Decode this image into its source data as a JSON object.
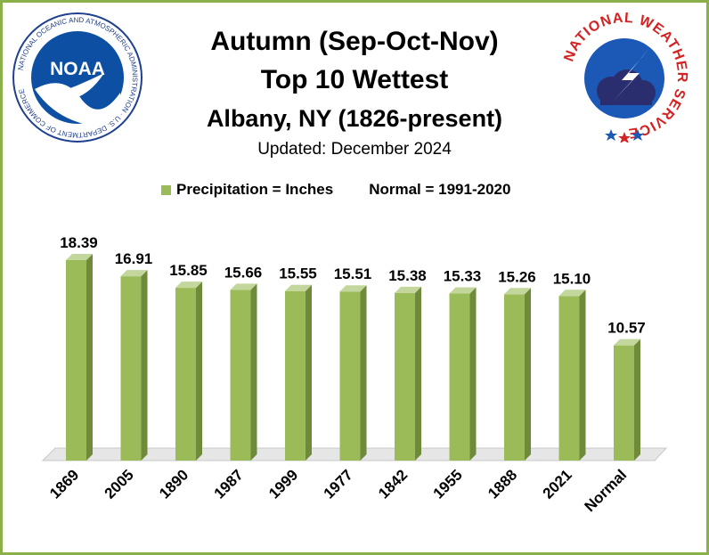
{
  "title_lines": [
    "Autumn (Sep-Oct-Nov)",
    "Top 10 Wettest",
    "Albany, NY (1826-present)",
    "Updated: December 2024"
  ],
  "legend": {
    "series": "Precipitation = Inches",
    "normal_note": "Normal = 1991-2020"
  },
  "logos": {
    "noaa_text": "NOAA",
    "noaa_ring": "NATIONAL OCEANIC AND ATMOSPHERIC ADMINISTRATION · U.S. DEPARTMENT OF COMMERCE",
    "nws_ring": "NATIONAL WEATHER SERVICE"
  },
  "colors": {
    "bar_front": "#9bbb59",
    "bar_side": "#6e8a3a",
    "bar_top": "#c3d69b",
    "border": "#8bb04a",
    "floor": "#e6e6e6"
  },
  "chart_data": {
    "type": "bar",
    "categories": [
      "1869",
      "2005",
      "1890",
      "1987",
      "1999",
      "1977",
      "1842",
      "1955",
      "1888",
      "2021",
      "Normal"
    ],
    "values": [
      18.39,
      16.91,
      15.85,
      15.66,
      15.55,
      15.51,
      15.38,
      15.33,
      15.26,
      15.1,
      10.57
    ],
    "value_labels": [
      "18.39",
      "16.91",
      "15.85",
      "15.66",
      "15.55",
      "15.51",
      "15.38",
      "15.33",
      "15.26",
      "15.10",
      "10.57"
    ],
    "ylim": [
      0,
      18.39
    ],
    "grid": false,
    "legend_position": "top"
  }
}
